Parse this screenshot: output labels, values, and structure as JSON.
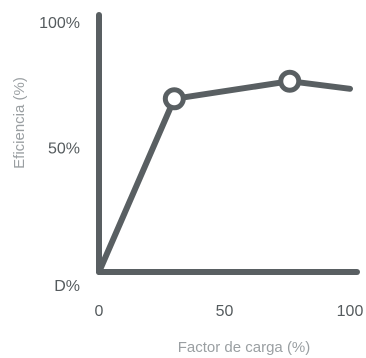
{
  "chart_data": {
    "type": "line",
    "xlabel": "Factor de carga (%)",
    "ylabel": "Eficiencia  (%)",
    "xlim": [
      0,
      100
    ],
    "ylim": [
      0,
      100
    ],
    "x_ticks": [
      {
        "value": 0,
        "label": "0"
      },
      {
        "value": 50,
        "label": "50"
      },
      {
        "value": 100,
        "label": "100"
      }
    ],
    "y_ticks": [
      {
        "value": 0,
        "label": "D%"
      },
      {
        "value": 50,
        "label": "50%"
      },
      {
        "value": 100,
        "label": "100%"
      }
    ],
    "series": [
      {
        "x": [
          0,
          30,
          76,
          100
        ],
        "y": [
          0,
          69,
          76,
          73
        ],
        "markers": [
          1,
          2
        ]
      }
    ],
    "colors": {
      "line": "#595f62",
      "axis": "#595f62",
      "marker_fill": "#ffffff"
    },
    "grid": false
  }
}
